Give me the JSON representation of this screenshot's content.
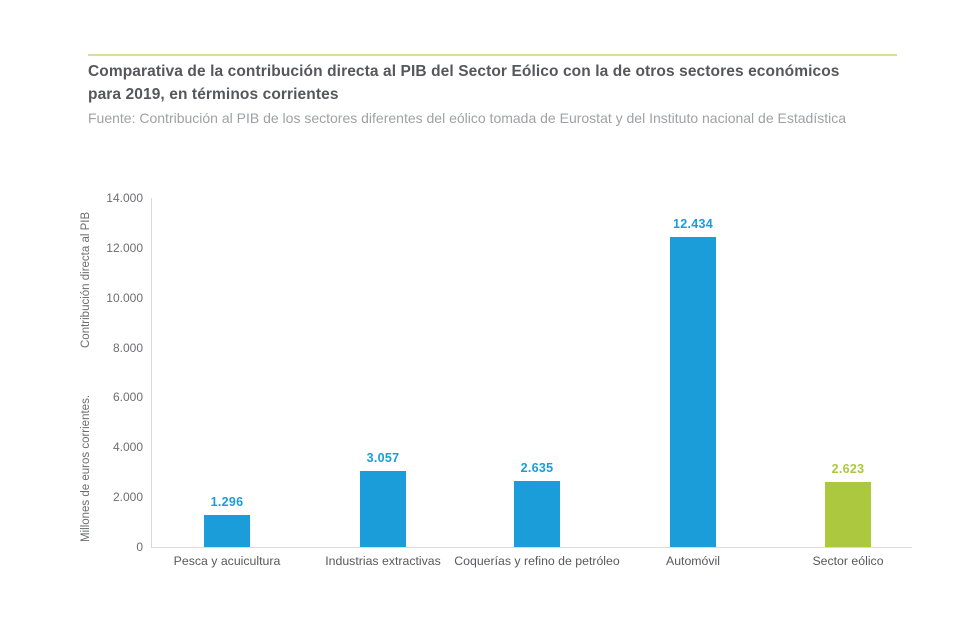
{
  "header": {
    "title": "Comparativa de la contribución directa al PIB del Sector Eólico con la de otros sectores económicos para 2019, en términos corrientes",
    "source": "Fuente: Contribución al PIB de los sectores diferentes del eólico tomada de Eurostat y del Instituto nacional de Estadística"
  },
  "chart_data": {
    "type": "bar",
    "title": "Comparativa de la contribución directa al PIB del Sector Eólico con la de otros sectores económicos para 2019, en términos corrientes",
    "subtitle": "Fuente: Contribución al PIB de los sectores diferentes del eólico tomada de Eurostat y del Instituto nacional de Estadística",
    "categories": [
      "Pesca y acuicultura",
      "Industrias extractivas",
      "Coquerías y refino de petróleo",
      "Automóvil",
      "Sector eólico"
    ],
    "values": [
      1296,
      3057,
      2635,
      12434,
      2623
    ],
    "value_labels": [
      "1.296",
      "3.057",
      "2.635",
      "12.434",
      "2.623"
    ],
    "bar_colors": [
      "#1a9dd9",
      "#1a9dd9",
      "#1a9dd9",
      "#1a9dd9",
      "#abc83f"
    ],
    "xlabel": "",
    "ylabel_top": "Contribución directa al PIB",
    "ylabel_bottom": "Millones de euros corrientes.",
    "ylim": [
      0,
      14000
    ],
    "yticks": [
      0,
      2000,
      4000,
      6000,
      8000,
      10000,
      12000,
      14000
    ],
    "ytick_labels": [
      "0",
      "2.000",
      "4.000",
      "6.000",
      "8.000",
      "10.000",
      "12.000",
      "14.000"
    ],
    "grid": false,
    "legend": "none",
    "colors": {
      "bar_blue": "#1a9dd9",
      "bar_green": "#abc83f",
      "accent_rule": "#d6e09c",
      "axis_line": "#d8d9da",
      "title_text": "#56575a",
      "source_text": "#9fa1a4",
      "axis_text": "#6d6e71"
    }
  }
}
